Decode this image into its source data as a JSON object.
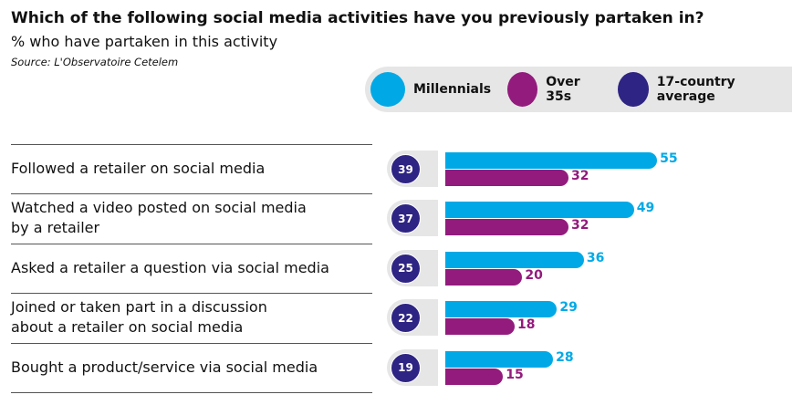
{
  "chart_data": {
    "type": "bar",
    "title": "Which of the following social media activities have you previously partaken in?",
    "subtitle": "% who have partaken in this activity",
    "source": "Source: L'Observatoire Cetelem",
    "categories": [
      "Followed a retailer on social media",
      "Watched a video posted on social media by a retailer",
      "Asked a retailer a question via social media",
      "Joined or taken part in a discussion about a retailer on social media",
      "Bought a product/service via social media"
    ],
    "label_lines": [
      [
        "Followed a retailer on social media"
      ],
      [
        "Watched a video posted on social media",
        "by a retailer"
      ],
      [
        "Asked a retailer a question via social media"
      ],
      [
        "Joined or taken part in a discussion",
        "about a retailer on social media"
      ],
      [
        "Bought a product/service via social media"
      ]
    ],
    "series": [
      {
        "name": "Millennials",
        "color": "#00a9e6",
        "values": [
          55,
          49,
          36,
          29,
          28
        ]
      },
      {
        "name": "Over 35s",
        "color": "#931b7d",
        "values": [
          32,
          32,
          20,
          18,
          15
        ]
      },
      {
        "name": "17-country average",
        "color": "#2e2483",
        "values": [
          39,
          37,
          25,
          22,
          19
        ]
      }
    ],
    "legend": "top-right"
  }
}
